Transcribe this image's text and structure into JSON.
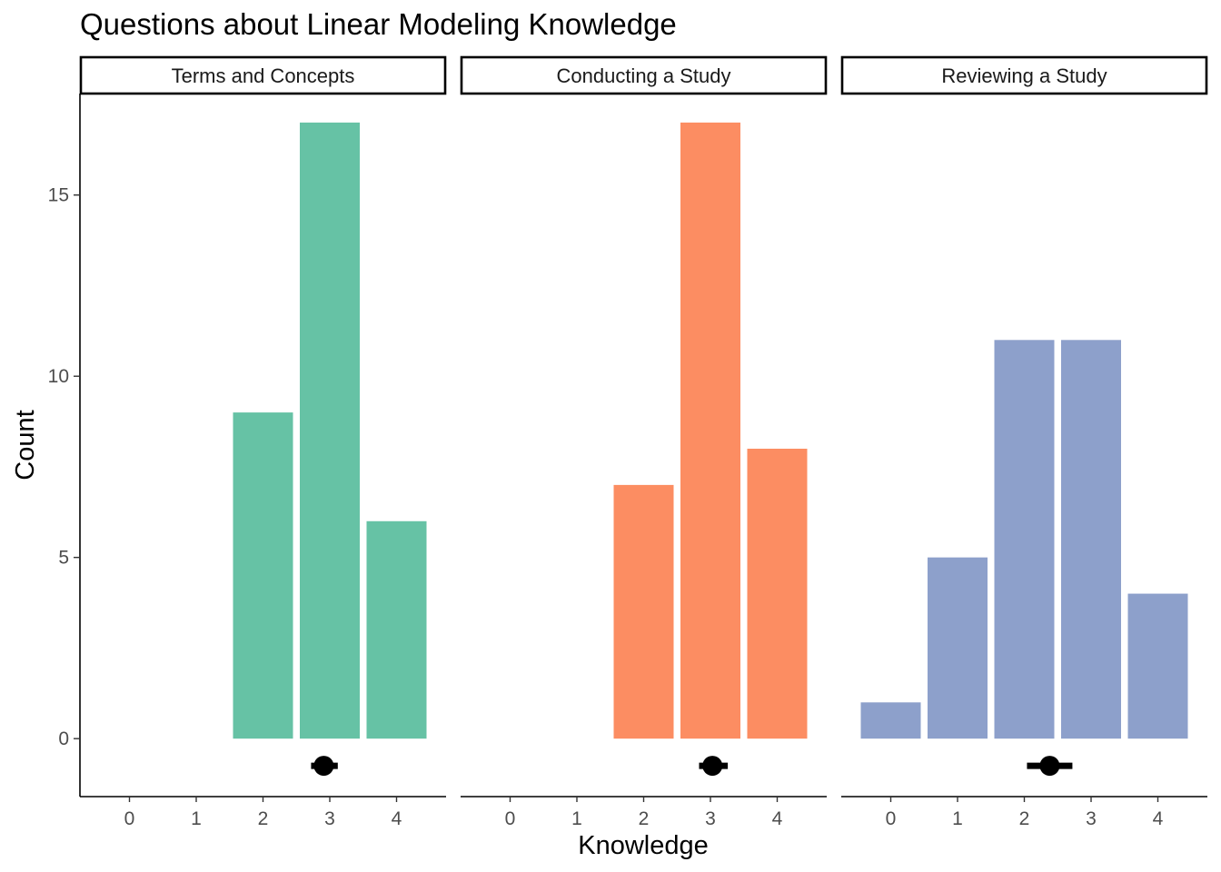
{
  "chart_data": {
    "type": "bar",
    "title": "Questions about Linear Modeling Knowledge",
    "xlabel": "Knowledge",
    "ylabel": "Count",
    "categories": [
      "0",
      "1",
      "2",
      "3",
      "4"
    ],
    "ylim": [
      -1.6,
      17.8
    ],
    "yticks": [
      0,
      5,
      10,
      15
    ],
    "grid": false,
    "legend": "none",
    "panels": [
      {
        "name": "Terms and Concepts",
        "color": "#66c2a5",
        "values": [
          0,
          0,
          9,
          17,
          6
        ],
        "mean": 2.91,
        "interval": [
          2.72,
          3.12
        ]
      },
      {
        "name": "Conducting a Study",
        "color": "#fc8d62",
        "values": [
          0,
          0,
          7,
          17,
          8
        ],
        "mean": 3.03,
        "interval": [
          2.83,
          3.26
        ]
      },
      {
        "name": "Reviewing a Study",
        "color": "#8da0cb",
        "values": [
          1,
          5,
          11,
          11,
          4
        ],
        "mean": 2.38,
        "interval": [
          2.04,
          2.72
        ]
      }
    ],
    "point_color": "#000000"
  }
}
